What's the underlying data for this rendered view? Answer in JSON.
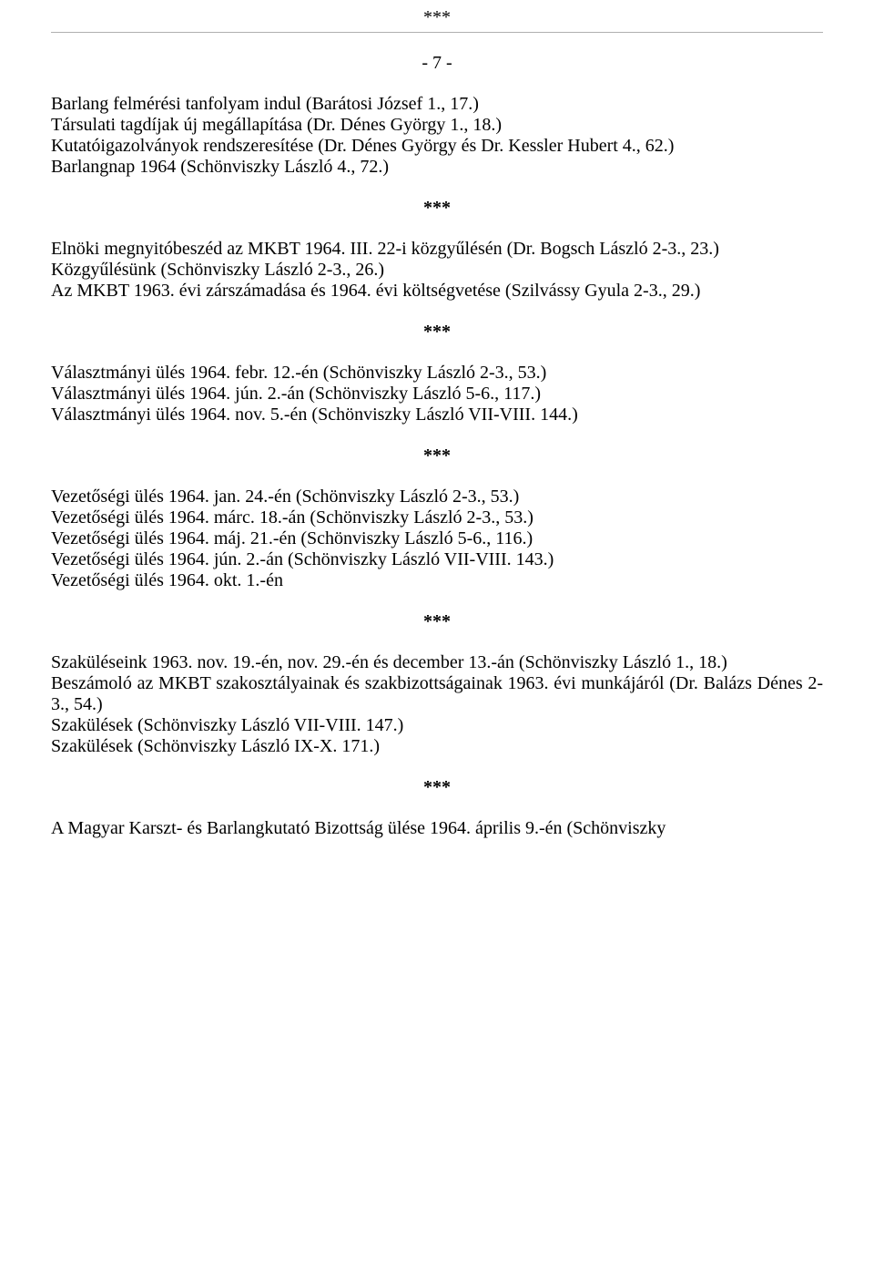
{
  "separator": "***",
  "page_number": "- 7 -",
  "sections": {
    "s1": {
      "lines": [
        "Barlang felmérési tanfolyam indul (Barátosi József 1., 17.)",
        "Társulati tagdíjak új megállapítása (Dr. Dénes György 1., 18.)",
        "Kutatóigazolványok rendszeresítése (Dr. Dénes György és Dr. Kessler Hubert 4., 62.)",
        "Barlangnap 1964 (Schönviszky László 4., 72.)"
      ]
    },
    "s2": {
      "lines": [
        "Elnöki megnyitóbeszéd az MKBT 1964. III. 22-i közgyűlésén (Dr. Bogsch László 2-3., 23.)",
        "Közgyűlésünk (Schönviszky László 2-3., 26.)",
        "Az MKBT 1963. évi zárszámadása és 1964. évi költségvetése (Szilvássy Gyula 2-3., 29.)"
      ]
    },
    "s3": {
      "lines": [
        "Választmányi ülés 1964. febr. 12.-én (Schönviszky László 2-3., 53.)",
        "Választmányi ülés 1964. jún. 2.-án (Schönviszky László 5-6., 117.)",
        "Választmányi ülés 1964. nov. 5.-én (Schönviszky László VII-VIII. 144.)"
      ]
    },
    "s4": {
      "lines": [
        "Vezetőségi ülés 1964. jan. 24.-én (Schönviszky László 2-3., 53.)",
        "Vezetőségi ülés 1964. márc. 18.-án (Schönviszky László 2-3., 53.)",
        "Vezetőségi ülés 1964. máj. 21.-én (Schönviszky László 5-6., 116.)",
        "Vezetőségi ülés 1964. jún. 2.-án (Schönviszky László VII-VIII. 143.)",
        "Vezetőségi ülés 1964. okt. 1.-én"
      ]
    },
    "s5": {
      "lines": [
        "Szaküléseink 1963. nov. 19.-én, nov. 29.-én és december 13.-án (Schönviszky László 1., 18.)",
        "Beszámoló az MKBT szakosztályainak és szakbizottságainak 1963. évi munkájáról (Dr. Balázs Dénes 2-3., 54.)",
        "Szakülések (Schönviszky László VII-VIII. 147.)",
        "Szakülések (Schönviszky László IX-X. 171.)"
      ]
    },
    "s6": {
      "lines": [
        "A Magyar Karszt- és Barlangkutató Bizottság ülése 1964. április 9.-én (Schönviszky"
      ]
    }
  }
}
